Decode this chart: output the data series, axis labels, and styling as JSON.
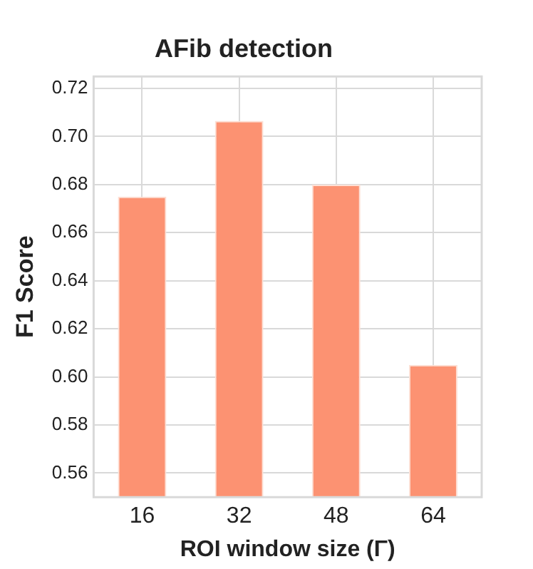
{
  "chart_data": {
    "type": "bar",
    "title": "AFib detection",
    "xlabel": "ROI window size (Γ)",
    "ylabel": "F1 Score",
    "categories": [
      "16",
      "32",
      "48",
      "64"
    ],
    "values": [
      0.675,
      0.7065,
      0.68,
      0.605
    ],
    "color": "#fc9272",
    "ylim": [
      0.55,
      0.725
    ],
    "yticks": [
      0.56,
      0.58,
      {
        "value": 0.6,
        "label": "0.60"
      },
      0.62,
      0.64,
      0.66,
      0.68,
      {
        "value": 0.7,
        "label": "0.70"
      },
      0.72
    ],
    "grid": true
  }
}
